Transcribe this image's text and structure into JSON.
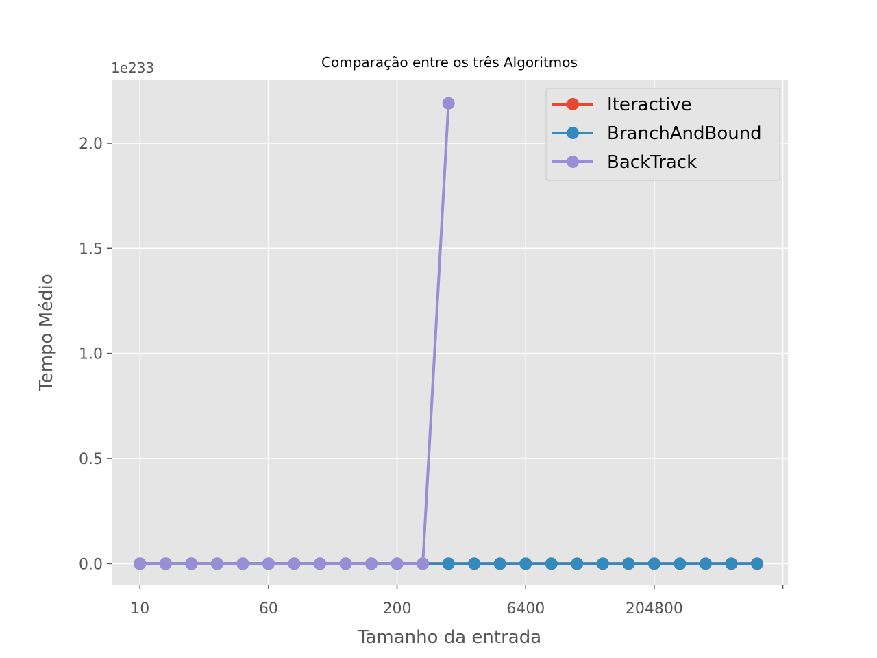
{
  "chart_data": {
    "type": "line",
    "title": "Comparação entre os três Algoritmos",
    "xlabel": "Tamanho da entrada",
    "ylabel": "Tempo Médio",
    "y_offset_label": "1e233",
    "x": [
      1,
      2,
      3,
      4,
      5,
      6,
      7,
      8,
      9,
      10,
      11,
      12,
      13,
      14,
      15,
      16,
      17,
      18,
      19,
      20,
      21,
      22,
      23,
      24,
      25
    ],
    "x_ticks": [
      {
        "x": 0,
        "label": "10"
      },
      {
        "x": 5,
        "label": "60"
      },
      {
        "x": 10,
        "label": "200"
      },
      {
        "x": 15,
        "label": "6400"
      },
      {
        "x": 20,
        "label": "204800"
      },
      {
        "x": 25,
        "label": ""
      }
    ],
    "xlim": [
      -1.1,
      25.2
    ],
    "y_ticks": [
      {
        "value": 0.0,
        "label": "0.0"
      },
      {
        "value": 0.5,
        "label": "0.5"
      },
      {
        "value": 1.0,
        "label": "1.0"
      },
      {
        "value": 1.5,
        "label": "1.5"
      },
      {
        "value": 2.0,
        "label": "2.0"
      }
    ],
    "ylim": [
      -0.1,
      2.3
    ],
    "grid": true,
    "legend_position": "top-right",
    "series": [
      {
        "name": "Iteractive",
        "color": "#E24A33",
        "x": [
          0,
          1,
          2,
          3,
          4,
          5,
          6,
          7,
          8,
          9,
          10,
          11,
          12,
          13,
          14,
          15,
          16,
          17,
          18,
          19,
          20,
          21,
          22,
          23,
          24
        ],
        "values": [
          0,
          0,
          0,
          0,
          0,
          0,
          0,
          0,
          0,
          0,
          0,
          0,
          0,
          0,
          0,
          0,
          0,
          0,
          0,
          0,
          0,
          0,
          0,
          0,
          0
        ]
      },
      {
        "name": "BranchAndBound",
        "color": "#348ABD",
        "x": [
          0,
          1,
          2,
          3,
          4,
          5,
          6,
          7,
          8,
          9,
          10,
          11,
          12,
          13,
          14,
          15,
          16,
          17,
          18,
          19,
          20,
          21,
          22,
          23,
          24
        ],
        "values": [
          0,
          0,
          0,
          0,
          0,
          0,
          0,
          0,
          0,
          0,
          0,
          0,
          0,
          0,
          0,
          0,
          0,
          0,
          0,
          0,
          0,
          0,
          0,
          0,
          0
        ]
      },
      {
        "name": "BackTrack",
        "color": "#988ED5",
        "x": [
          0,
          1,
          2,
          3,
          4,
          5,
          6,
          7,
          8,
          9,
          10,
          11,
          12
        ],
        "values": [
          0,
          0,
          0,
          0,
          0,
          0,
          0,
          0,
          0,
          0,
          0,
          0,
          2.19
        ]
      }
    ]
  }
}
